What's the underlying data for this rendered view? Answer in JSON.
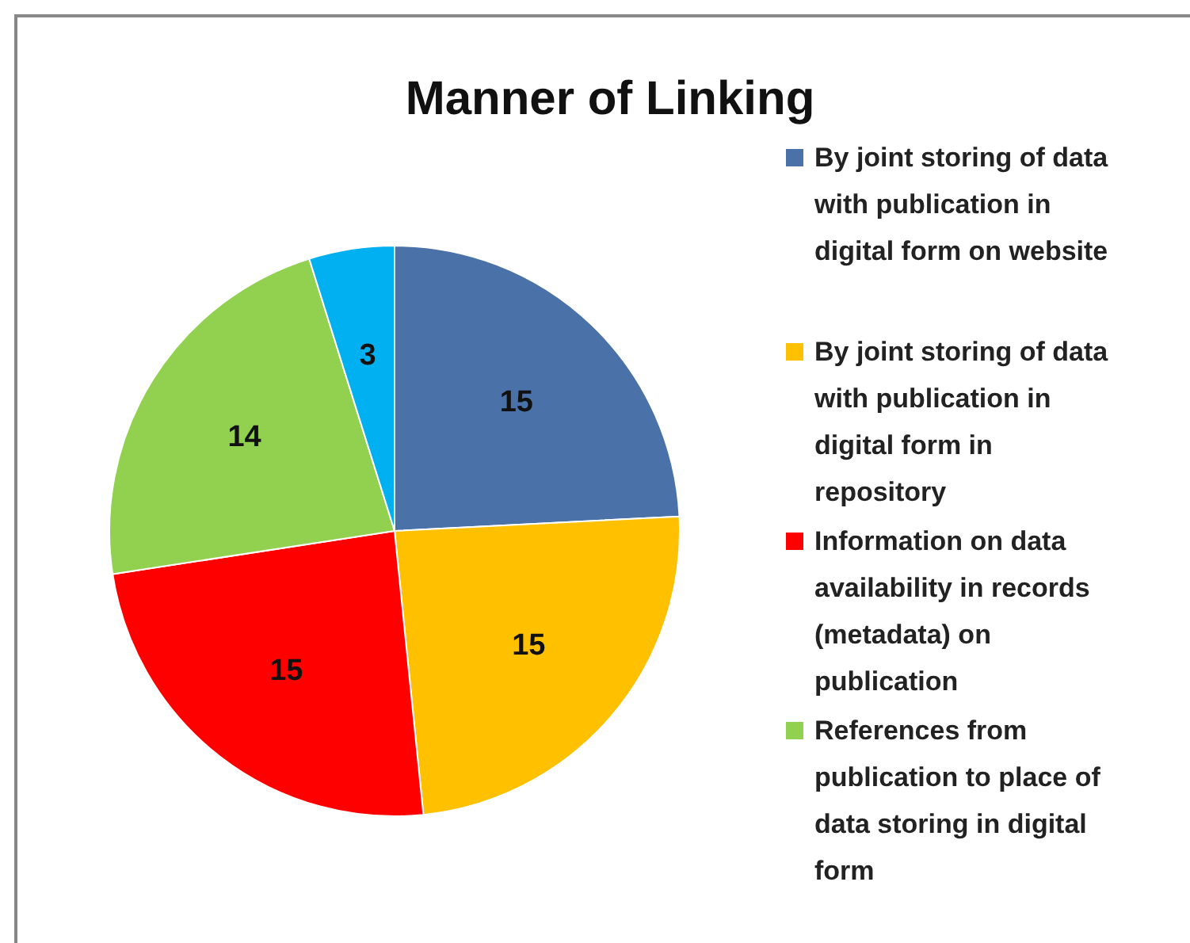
{
  "chart_data": {
    "type": "pie",
    "title": "Manner of Linking",
    "categories": [
      "By joint storing of data with publication in digital form on website",
      "By joint storing of data with publication in digital form in repository",
      "Information on data availability in records (metadata) on publication",
      "References from publication to place of data storing in digital form",
      null
    ],
    "values": [
      15,
      15,
      15,
      14,
      3
    ],
    "colors": [
      "#4a72a8",
      "#ffc000",
      "#ff0000",
      "#92d050",
      "#00b0f0"
    ],
    "data_labels": true,
    "legend": "right"
  }
}
